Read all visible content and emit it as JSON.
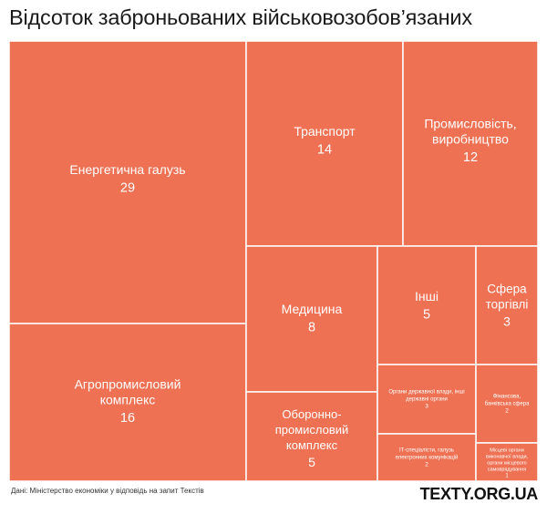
{
  "header": {
    "title": "Відсоток заброньованих військовозобов’язаних"
  },
  "footer": {
    "source": "Дані: Міністерство економіки у відповідь на запит Текстів",
    "brand": "TEXTY.ORG.UA"
  },
  "colors": {
    "tile": "#EE7153",
    "border": "#ffffff",
    "label": "#ffffff"
  },
  "chart_data": {
    "type": "treemap",
    "title": "Відсоток заброньованих військовозобов’язаних",
    "items": [
      {
        "name": "Енергетична галузь",
        "lines": [
          "Енергетична галузь"
        ],
        "value": 29
      },
      {
        "name": "Агропромисловий комплекс",
        "lines": [
          "Агропромисловий",
          "комплекс"
        ],
        "value": 16
      },
      {
        "name": "Транспорт",
        "lines": [
          "Транспорт"
        ],
        "value": 14
      },
      {
        "name": "Промисловість, виробництво",
        "lines": [
          "Промисловість,",
          "виробництво"
        ],
        "value": 12
      },
      {
        "name": "Медицина",
        "lines": [
          "Медицина"
        ],
        "value": 8
      },
      {
        "name": "Оборонно-промисловий комплекс",
        "lines": [
          "Оборонно-",
          "промисловий",
          "комплекс"
        ],
        "value": 5
      },
      {
        "name": "Інші",
        "lines": [
          "Інші"
        ],
        "value": 5
      },
      {
        "name": "Сфера торгівлі",
        "lines": [
          "Сфера",
          "торгівлі"
        ],
        "value": 3
      },
      {
        "name": "Органи державної влади, інші державні органи",
        "lines": [
          "Органи державної влади, інші",
          "державні органи"
        ],
        "value": 3
      },
      {
        "name": "Фінансова, банківська сфера",
        "lines": [
          "Фінансова,",
          "банківська сфера"
        ],
        "value": 2
      },
      {
        "name": "ІТ-спеціалісти, галузь електронних комунікацій",
        "lines": [
          "ІТ-спеціалісти, галузь",
          "електронних комунікацій"
        ],
        "value": 2
      },
      {
        "name": "Місцеві органи виконавчої влади, органи місцевого самоврядування",
        "lines": [
          "Місцеві органи",
          "виконавчої влади,",
          "органи місцевого",
          "самоврядування"
        ],
        "value": 1
      }
    ]
  }
}
